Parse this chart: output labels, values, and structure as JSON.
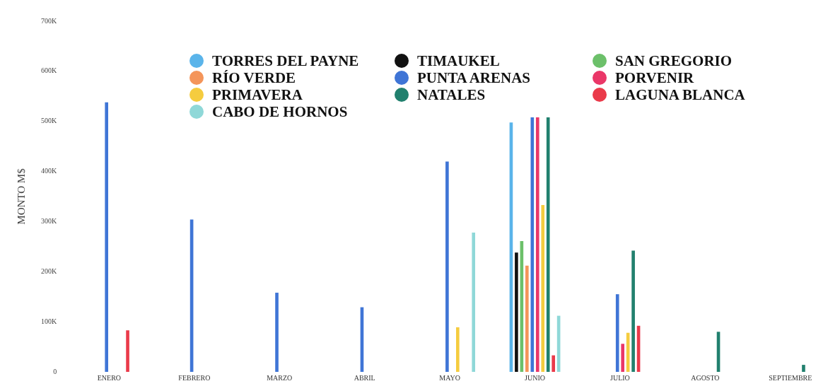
{
  "chart_data": {
    "type": "bar",
    "ylabel": "MONTO M$",
    "categories": [
      "ENERO",
      "FEBRERO",
      "MARZO",
      "ABRIL",
      "MAYO",
      "JUNIO",
      "JULIO",
      "AGOSTO",
      "SEPTIEMBRE"
    ],
    "ylim": [
      0,
      700000
    ],
    "yticks": [
      {
        "value": 0,
        "label": "0"
      },
      {
        "value": 100000,
        "label": "100K"
      },
      {
        "value": 200000,
        "label": "200K"
      },
      {
        "value": 300000,
        "label": "300K"
      },
      {
        "value": 400000,
        "label": "400K"
      },
      {
        "value": 500000,
        "label": "500K"
      },
      {
        "value": 600000,
        "label": "600K"
      },
      {
        "value": 700000,
        "label": "700K"
      }
    ],
    "grid": false,
    "legend": "top",
    "series": [
      {
        "name": "TORRES DEL PAYNE",
        "color": "#5ab4ea",
        "values": [
          null,
          null,
          null,
          null,
          null,
          498000,
          null,
          null,
          null
        ]
      },
      {
        "name": "TIMAUKEL",
        "color": "#111111",
        "values": [
          null,
          null,
          null,
          null,
          null,
          238000,
          null,
          null,
          null
        ]
      },
      {
        "name": "SAN GREGORIO",
        "color": "#6cc06a",
        "values": [
          null,
          null,
          null,
          null,
          null,
          261000,
          null,
          null,
          null
        ]
      },
      {
        "name": "RÍO VERDE",
        "color": "#f4955a",
        "values": [
          null,
          null,
          null,
          null,
          null,
          212000,
          null,
          null,
          null
        ]
      },
      {
        "name": "PUNTA ARENAS",
        "color": "#3f75d6",
        "values": [
          538000,
          304000,
          158000,
          129000,
          420000,
          508000,
          155000,
          null,
          null
        ]
      },
      {
        "name": "PORVENIR",
        "color": "#ea3768",
        "values": [
          null,
          null,
          null,
          null,
          null,
          508000,
          56000,
          null,
          null
        ]
      },
      {
        "name": "PRIMAVERA",
        "color": "#f5cc3f",
        "values": [
          null,
          null,
          null,
          null,
          89000,
          333000,
          78000,
          null,
          null
        ]
      },
      {
        "name": "NATALES",
        "color": "#21806e",
        "values": [
          null,
          null,
          null,
          null,
          null,
          508000,
          242000,
          80000,
          14000
        ]
      },
      {
        "name": "LAGUNA BLANCA",
        "color": "#ea3a4a",
        "values": [
          83000,
          null,
          null,
          null,
          null,
          33000,
          92000,
          null,
          null
        ]
      },
      {
        "name": "CABO DE HORNOS",
        "color": "#8fd8d8",
        "values": [
          null,
          null,
          null,
          null,
          278000,
          112000,
          null,
          null,
          null
        ]
      }
    ]
  }
}
